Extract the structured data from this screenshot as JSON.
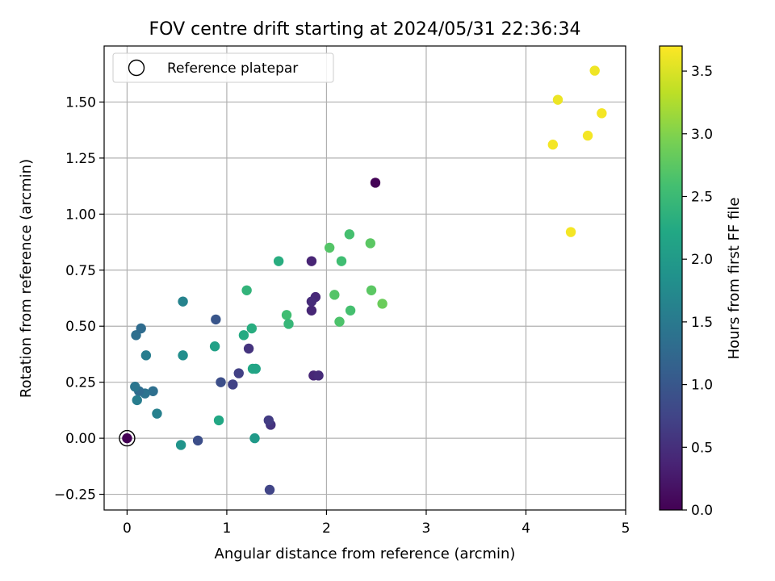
{
  "chart_data": {
    "type": "scatter",
    "title": "FOV centre drift starting at 2024/05/31 22:36:34",
    "xlabel": "Angular distance from reference (arcmin)",
    "ylabel": "Rotation from reference (arcmin)",
    "xlim": [
      -0.23,
      5.0
    ],
    "ylim": [
      -0.32,
      1.75
    ],
    "xticks": [
      0,
      1,
      2,
      3,
      4,
      5
    ],
    "xtick_labels": [
      "0",
      "1",
      "2",
      "3",
      "4",
      "5"
    ],
    "yticks": [
      -0.25,
      0.0,
      0.25,
      0.5,
      0.75,
      1.0,
      1.25,
      1.5
    ],
    "ytick_labels": [
      "−0.25",
      "0.00",
      "0.25",
      "0.50",
      "0.75",
      "1.00",
      "1.25",
      "1.50"
    ],
    "grid": true,
    "legend": {
      "position": "top-left",
      "entries": [
        "Reference platepar"
      ]
    },
    "reference_point": {
      "x": 0.0,
      "y": 0.0
    },
    "colorbar": {
      "label": "Hours from first FF file",
      "colormap": "viridis",
      "range": [
        0.0,
        3.7
      ],
      "ticks": [
        0.0,
        0.5,
        1.0,
        1.5,
        2.0,
        2.5,
        3.0,
        3.5
      ],
      "tick_labels": [
        "0.0",
        "0.5",
        "1.0",
        "1.5",
        "2.0",
        "2.5",
        "3.0",
        "3.5"
      ]
    },
    "points": [
      {
        "x": 0.0,
        "y": 0.0,
        "h": 0.0
      },
      {
        "x": 2.49,
        "y": 1.14,
        "h": 0.02
      },
      {
        "x": 1.85,
        "y": 0.79,
        "h": 0.38
      },
      {
        "x": 1.89,
        "y": 0.63,
        "h": 0.42
      },
      {
        "x": 1.85,
        "y": 0.61,
        "h": 0.45
      },
      {
        "x": 1.85,
        "y": 0.57,
        "h": 0.4
      },
      {
        "x": 1.87,
        "y": 0.28,
        "h": 0.4
      },
      {
        "x": 1.92,
        "y": 0.28,
        "h": 0.45
      },
      {
        "x": 1.44,
        "y": 0.06,
        "h": 0.55
      },
      {
        "x": 1.42,
        "y": 0.08,
        "h": 0.65
      },
      {
        "x": 1.43,
        "y": -0.23,
        "h": 0.75
      },
      {
        "x": 1.22,
        "y": 0.4,
        "h": 0.55
      },
      {
        "x": 1.12,
        "y": 0.29,
        "h": 0.7
      },
      {
        "x": 1.06,
        "y": 0.24,
        "h": 0.72
      },
      {
        "x": 0.94,
        "y": 0.25,
        "h": 0.88
      },
      {
        "x": 0.89,
        "y": 0.53,
        "h": 0.98
      },
      {
        "x": 0.71,
        "y": -0.01,
        "h": 0.88
      },
      {
        "x": 0.56,
        "y": 0.61,
        "h": 1.65
      },
      {
        "x": 0.56,
        "y": 0.37,
        "h": 1.8
      },
      {
        "x": 0.54,
        "y": -0.03,
        "h": 1.9
      },
      {
        "x": 0.3,
        "y": 0.11,
        "h": 1.6
      },
      {
        "x": 0.26,
        "y": 0.21,
        "h": 1.35
      },
      {
        "x": 0.18,
        "y": 0.2,
        "h": 1.4
      },
      {
        "x": 0.12,
        "y": 0.21,
        "h": 1.3
      },
      {
        "x": 0.1,
        "y": 0.17,
        "h": 1.55
      },
      {
        "x": 0.08,
        "y": 0.23,
        "h": 1.45
      },
      {
        "x": 0.09,
        "y": 0.46,
        "h": 1.35
      },
      {
        "x": 0.14,
        "y": 0.49,
        "h": 1.3
      },
      {
        "x": 0.19,
        "y": 0.37,
        "h": 1.55
      },
      {
        "x": 0.88,
        "y": 0.41,
        "h": 2.1
      },
      {
        "x": 0.92,
        "y": 0.08,
        "h": 2.2
      },
      {
        "x": 1.17,
        "y": 0.46,
        "h": 2.25
      },
      {
        "x": 1.2,
        "y": 0.66,
        "h": 2.4
      },
      {
        "x": 1.25,
        "y": 0.49,
        "h": 2.3
      },
      {
        "x": 1.26,
        "y": 0.31,
        "h": 2.2
      },
      {
        "x": 1.29,
        "y": 0.31,
        "h": 2.15
      },
      {
        "x": 1.28,
        "y": 0.0,
        "h": 2.0
      },
      {
        "x": 1.52,
        "y": 0.79,
        "h": 2.3
      },
      {
        "x": 1.6,
        "y": 0.55,
        "h": 2.55
      },
      {
        "x": 1.62,
        "y": 0.51,
        "h": 2.45
      },
      {
        "x": 2.03,
        "y": 0.85,
        "h": 2.7
      },
      {
        "x": 2.08,
        "y": 0.64,
        "h": 2.7
      },
      {
        "x": 2.13,
        "y": 0.52,
        "h": 2.65
      },
      {
        "x": 2.15,
        "y": 0.79,
        "h": 2.55
      },
      {
        "x": 2.23,
        "y": 0.91,
        "h": 2.6
      },
      {
        "x": 2.24,
        "y": 0.57,
        "h": 2.6
      },
      {
        "x": 2.44,
        "y": 0.87,
        "h": 2.75
      },
      {
        "x": 2.45,
        "y": 0.66,
        "h": 2.75
      },
      {
        "x": 2.56,
        "y": 0.6,
        "h": 2.85
      },
      {
        "x": 4.27,
        "y": 1.31,
        "h": 3.65
      },
      {
        "x": 4.32,
        "y": 1.51,
        "h": 3.6
      },
      {
        "x": 4.45,
        "y": 0.92,
        "h": 3.65
      },
      {
        "x": 4.62,
        "y": 1.35,
        "h": 3.65
      },
      {
        "x": 4.69,
        "y": 1.64,
        "h": 3.62
      },
      {
        "x": 4.76,
        "y": 1.45,
        "h": 3.65
      }
    ]
  }
}
